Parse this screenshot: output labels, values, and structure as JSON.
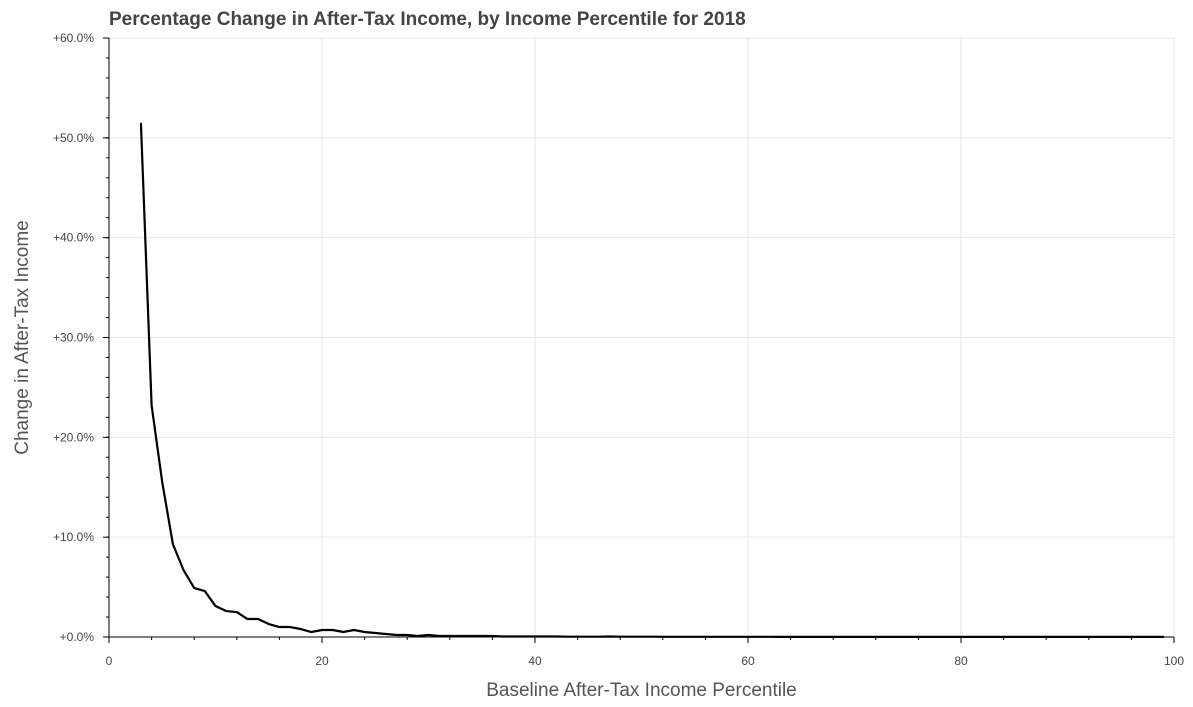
{
  "chart_data": {
    "type": "line",
    "title": "Percentage Change in After-Tax Income, by Income Percentile for 2018",
    "xlabel": "Baseline After-Tax Income Percentile",
    "ylabel": "Change in After-Tax Income",
    "xlim": [
      0,
      100
    ],
    "ylim": [
      0,
      60
    ],
    "xticks": [
      0,
      20,
      40,
      60,
      80,
      100
    ],
    "yticks": [
      0,
      10,
      20,
      30,
      40,
      50,
      60
    ],
    "xtick_labels": [
      "0",
      "20",
      "40",
      "60",
      "80",
      "100"
    ],
    "ytick_labels": [
      "+0.0%",
      "+10.0%",
      "+20.0%",
      "+30.0%",
      "+40.0%",
      "+50.0%",
      "+60.0%"
    ],
    "grid": true,
    "line_color": "#000000",
    "series": [
      {
        "x": [
          3,
          4,
          5,
          6,
          7,
          8,
          9,
          10,
          11,
          12,
          13,
          14,
          15,
          16,
          17,
          18,
          19,
          20,
          21,
          22,
          23,
          24,
          25,
          26,
          27,
          28,
          29,
          30,
          31,
          32,
          33,
          34,
          35,
          36,
          37,
          38,
          39,
          40,
          41,
          42,
          43,
          44,
          45,
          46,
          47,
          48,
          49,
          50,
          51,
          52,
          53,
          54,
          55,
          56,
          57,
          58,
          59,
          60,
          61,
          62,
          63,
          64,
          65,
          66,
          67,
          68,
          69,
          70,
          71,
          72,
          73,
          74,
          75,
          76,
          77,
          78,
          79,
          80,
          81,
          82,
          83,
          84,
          85,
          86,
          87,
          88,
          89,
          90,
          91,
          92,
          93,
          94,
          95,
          96,
          97,
          98,
          99
        ],
        "values": [
          51.4,
          23.2,
          15.5,
          9.3,
          6.7,
          4.9,
          4.6,
          3.1,
          2.6,
          2.5,
          1.8,
          1.8,
          1.3,
          1.0,
          1.0,
          0.8,
          0.5,
          0.7,
          0.7,
          0.5,
          0.7,
          0.5,
          0.4,
          0.3,
          0.2,
          0.2,
          0.1,
          0.2,
          0.1,
          0.1,
          0.1,
          0.1,
          0.1,
          0.1,
          0.05,
          0.05,
          0.05,
          0.05,
          0.05,
          0.05,
          0.03,
          0.03,
          0.03,
          0.03,
          0.05,
          0.03,
          0.03,
          0.03,
          0.03,
          0.02,
          0.02,
          0.02,
          0.02,
          0.02,
          0.02,
          0.02,
          0.02,
          0.02,
          0.02,
          0.02,
          0.01,
          0.01,
          0.01,
          0.01,
          0.01,
          0.01,
          0.01,
          0.01,
          0.01,
          0.01,
          0.01,
          0.01,
          0.01,
          0.01,
          0.01,
          0.01,
          0.01,
          0.01,
          0.01,
          0.01,
          0.01,
          0.01,
          0.01,
          0.01,
          0.01,
          0.01,
          0.01,
          0.01,
          0.01,
          0.01,
          0.01,
          0.01,
          0.01,
          0.01,
          0.01,
          0.01,
          0.01
        ]
      }
    ]
  }
}
